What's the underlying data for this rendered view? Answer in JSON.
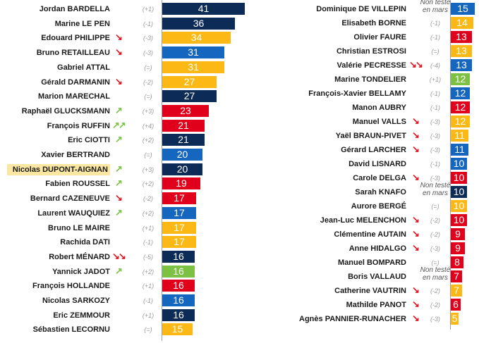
{
  "chart_data": {
    "type": "bar",
    "orientation": "horizontal",
    "colors": {
      "navy": "#0d2b57",
      "blue": "#1466bf",
      "yellow": "#fcb814",
      "red": "#e1001b",
      "green": "#7cc142"
    },
    "highlighted": "Nicolas DUPONT-AIGNAN",
    "columns": [
      {
        "rows": [
          {
            "name": "Jordan BARDELLA",
            "trend": null,
            "change": "(+1)",
            "value": 41,
            "color": "navy"
          },
          {
            "name": "Marine LE PEN",
            "trend": null,
            "change": "(-1)",
            "value": 36,
            "color": "navy"
          },
          {
            "name": "Edouard PHILIPPE",
            "trend": {
              "dir": "down",
              "count": 1
            },
            "change": "(-3)",
            "value": 34,
            "color": "yellow"
          },
          {
            "name": "Bruno RETAILLEAU",
            "trend": {
              "dir": "down",
              "count": 1
            },
            "change": "(-3)",
            "value": 31,
            "color": "blue"
          },
          {
            "name": "Gabriel ATTAL",
            "trend": null,
            "change": "(=)",
            "value": 31,
            "color": "yellow"
          },
          {
            "name": "Gérald DARMANIN",
            "trend": {
              "dir": "down",
              "count": 1
            },
            "change": "(-2)",
            "value": 27,
            "color": "yellow"
          },
          {
            "name": "Marion MARECHAL",
            "trend": null,
            "change": "(=)",
            "value": 27,
            "color": "navy"
          },
          {
            "name": "Raphaël GLUCKSMANN",
            "trend": {
              "dir": "up",
              "count": 1
            },
            "change": "(+3)",
            "value": 23,
            "color": "red"
          },
          {
            "name": "François RUFFIN",
            "trend": {
              "dir": "up",
              "count": 2
            },
            "change": "(+4)",
            "value": 21,
            "color": "red"
          },
          {
            "name": "Eric CIOTTI",
            "trend": {
              "dir": "up",
              "count": 1
            },
            "change": "(+2)",
            "value": 21,
            "color": "navy"
          },
          {
            "name": "Xavier BERTRAND",
            "trend": null,
            "change": "(=)",
            "value": 20,
            "color": "blue"
          },
          {
            "name": "Nicolas DUPONT-AIGNAN",
            "trend": {
              "dir": "up",
              "count": 1
            },
            "change": "(+3)",
            "value": 20,
            "color": "navy"
          },
          {
            "name": "Fabien ROUSSEL",
            "trend": {
              "dir": "up",
              "count": 1
            },
            "change": "(+2)",
            "value": 19,
            "color": "red"
          },
          {
            "name": "Bernard CAZENEUVE",
            "trend": {
              "dir": "down",
              "count": 1
            },
            "change": "(-2)",
            "value": 17,
            "color": "red"
          },
          {
            "name": "Laurent WAUQUIEZ",
            "trend": {
              "dir": "up",
              "count": 1
            },
            "change": "(+2)",
            "value": 17,
            "color": "blue"
          },
          {
            "name": "Bruno LE MAIRE",
            "trend": null,
            "change": "(+1)",
            "value": 17,
            "color": "yellow"
          },
          {
            "name": "Rachida DATI",
            "trend": null,
            "change": "(-1)",
            "value": 17,
            "color": "yellow"
          },
          {
            "name": "Robert MÉNARD",
            "trend": {
              "dir": "down",
              "count": 2
            },
            "change": "(-5)",
            "value": 16,
            "color": "navy"
          },
          {
            "name": "Yannick JADOT",
            "trend": {
              "dir": "up",
              "count": 1
            },
            "change": "(+2)",
            "value": 16,
            "color": "green"
          },
          {
            "name": "François HOLLANDE",
            "trend": null,
            "change": "(+1)",
            "value": 16,
            "color": "red"
          },
          {
            "name": "Nicolas SARKOZY",
            "trend": null,
            "change": "(-1)",
            "value": 16,
            "color": "blue"
          },
          {
            "name": "Eric ZEMMOUR",
            "trend": null,
            "change": "(+1)",
            "value": 16,
            "color": "navy"
          },
          {
            "name": "Sébastien LECORNU",
            "trend": null,
            "change": "(=)",
            "value": 15,
            "color": "yellow"
          }
        ]
      },
      {
        "rows": [
          {
            "name": "Dominique DE VILLEPIN",
            "trend": null,
            "change": "Non testé en mars",
            "value": 15,
            "color": "blue"
          },
          {
            "name": "Elisabeth BORNE",
            "trend": null,
            "change": "(-1)",
            "value": 14,
            "color": "yellow"
          },
          {
            "name": "Olivier FAURE",
            "trend": null,
            "change": "(-1)",
            "value": 13,
            "color": "red"
          },
          {
            "name": "Christian ESTROSI",
            "trend": null,
            "change": "(=)",
            "value": 13,
            "color": "yellow"
          },
          {
            "name": "Valérie PECRESSE",
            "trend": {
              "dir": "down",
              "count": 2
            },
            "change": "(-4)",
            "value": 13,
            "color": "blue"
          },
          {
            "name": "Marine TONDELIER",
            "trend": null,
            "change": "(+1)",
            "value": 12,
            "color": "green"
          },
          {
            "name": "François-Xavier BELLAMY",
            "trend": null,
            "change": "(-1)",
            "value": 12,
            "color": "blue"
          },
          {
            "name": "Manon AUBRY",
            "trend": null,
            "change": "(-1)",
            "value": 12,
            "color": "red"
          },
          {
            "name": "Manuel VALLS",
            "trend": {
              "dir": "down",
              "count": 1
            },
            "change": "(-3)",
            "value": 12,
            "color": "yellow"
          },
          {
            "name": "Yaël BRAUN-PIVET",
            "trend": {
              "dir": "down",
              "count": 1
            },
            "change": "(-3)",
            "value": 11,
            "color": "yellow"
          },
          {
            "name": "Gérard LARCHER",
            "trend": {
              "dir": "down",
              "count": 1
            },
            "change": "(-3)",
            "value": 11,
            "color": "blue"
          },
          {
            "name": "David LISNARD",
            "trend": null,
            "change": "(-1)",
            "value": 10,
            "color": "blue"
          },
          {
            "name": "Carole DELGA",
            "trend": {
              "dir": "down",
              "count": 1
            },
            "change": "(-3)",
            "value": 10,
            "color": "red"
          },
          {
            "name": "Sarah KNAFO",
            "trend": null,
            "change": "Non testé en mars",
            "value": 10,
            "color": "navy"
          },
          {
            "name": "Aurore BERGÉ",
            "trend": null,
            "change": "(=)",
            "value": 10,
            "color": "yellow"
          },
          {
            "name": "Jean-Luc MELENCHON",
            "trend": {
              "dir": "down",
              "count": 1
            },
            "change": "(-2)",
            "value": 10,
            "color": "red"
          },
          {
            "name": "Clémentine AUTAIN",
            "trend": {
              "dir": "down",
              "count": 1
            },
            "change": "(-2)",
            "value": 9,
            "color": "red"
          },
          {
            "name": "Anne HIDALGO",
            "trend": {
              "dir": "down",
              "count": 1
            },
            "change": "(-3)",
            "value": 9,
            "color": "red"
          },
          {
            "name": "Manuel BOMPARD",
            "trend": null,
            "change": "(=)",
            "value": 8,
            "color": "red"
          },
          {
            "name": "Boris VALLAUD",
            "trend": null,
            "change": "Non testé en mars",
            "value": 7,
            "color": "red"
          },
          {
            "name": "Catherine VAUTRIN",
            "trend": {
              "dir": "down",
              "count": 1
            },
            "change": "(-2)",
            "value": 7,
            "color": "yellow"
          },
          {
            "name": "Mathilde PANOT",
            "trend": {
              "dir": "down",
              "count": 1
            },
            "change": "(-2)",
            "value": 6,
            "color": "red"
          },
          {
            "name": "Agnès PANNIER-RUNACHER",
            "trend": {
              "dir": "down",
              "count": 1
            },
            "change": "(-3)",
            "value": 5,
            "color": "yellow"
          }
        ]
      }
    ]
  }
}
